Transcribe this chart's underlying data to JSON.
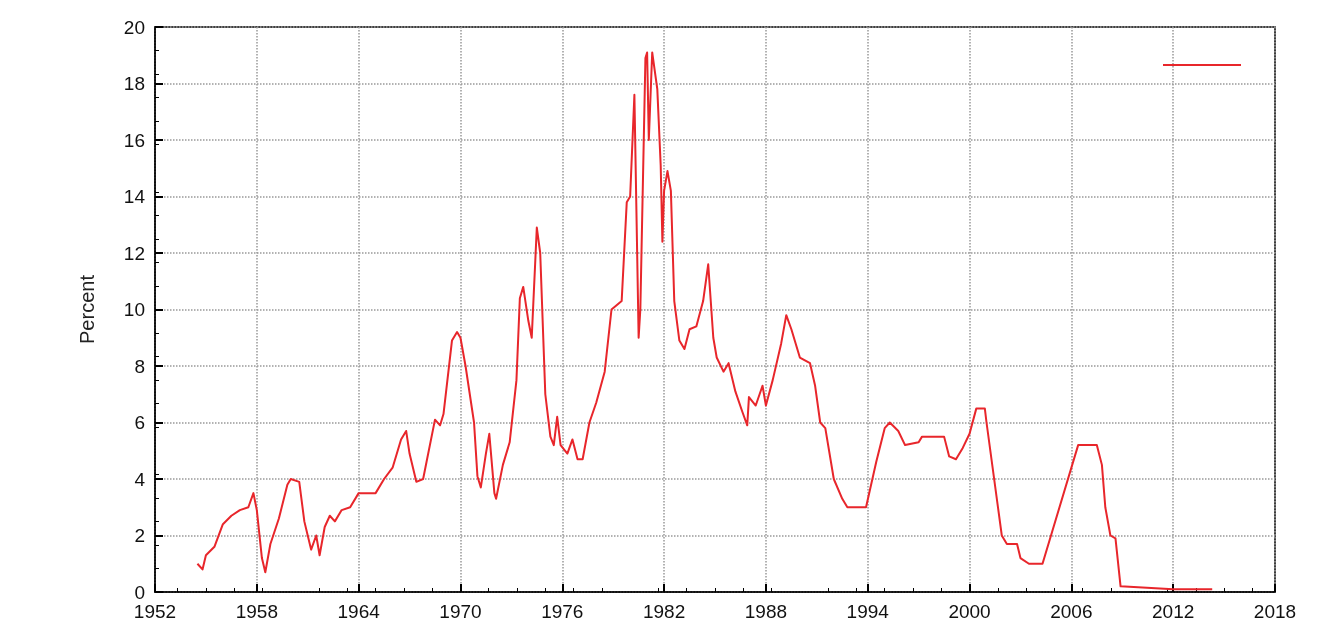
{
  "chart_data": {
    "type": "line",
    "ylabel": "Percent",
    "xlim": [
      1952,
      2018
    ],
    "xticks": [
      1952,
      1958,
      1964,
      1970,
      1976,
      1982,
      1988,
      1994,
      2000,
      2006,
      2012,
      2018
    ],
    "ylim": [
      0,
      20
    ],
    "yticks": [
      0,
      2,
      4,
      6,
      8,
      10,
      12,
      14,
      16,
      18,
      20
    ],
    "grid": true,
    "marker": "none",
    "line_style": "solid",
    "series": [
      {
        "color": "#e8262b",
        "x": [
          1954.5,
          1954.8,
          1955,
          1955.5,
          1956,
          1956.5,
          1957,
          1957.5,
          1957.8,
          1958,
          1958.3,
          1958.5,
          1958.8,
          1959.3,
          1959.8,
          1960,
          1960.5,
          1960.8,
          1961,
          1961.2,
          1961.5,
          1961.7,
          1962,
          1962.3,
          1962.6,
          1963,
          1963.5,
          1964,
          1965,
          1965.5,
          1966,
          1966.5,
          1966.8,
          1967,
          1967.4,
          1967.8,
          1968,
          1968.5,
          1968.8,
          1969,
          1969.5,
          1969.8,
          1970,
          1970.3,
          1970.8,
          1971,
          1971.2,
          1971.5,
          1971.7,
          1972,
          1972.1,
          1972.5,
          1972.9,
          1973.3,
          1973.5,
          1973.7,
          1974,
          1974.2,
          1974.5,
          1974.7,
          1975,
          1975.3,
          1975.5,
          1975.7,
          1975.9,
          1976.3,
          1976.6,
          1976.9,
          1977.2,
          1977.6,
          1978,
          1978.5,
          1978.9,
          1979.5,
          1979.8,
          1980,
          1980.25,
          1980.5,
          1980.6,
          1980.9,
          1981,
          1981.1,
          1981.3,
          1981.6,
          1981.8,
          1981.9,
          1982,
          1982.2,
          1982.4,
          1982.6,
          1982.9,
          1983.2,
          1983.5,
          1983.9,
          1984.3,
          1984.6,
          1984.9,
          1985.1,
          1985.5,
          1985.8,
          1986.2,
          1986.6,
          1986.9,
          1987,
          1987.4,
          1987.8,
          1988,
          1988.4,
          1988.9,
          1989.2,
          1989.5,
          1990,
          1990.6,
          1990.9,
          1991.2,
          1991.5,
          1992,
          1992.5,
          1992.8,
          1993.5,
          1993.9,
          1994.5,
          1995,
          1995.3,
          1995.8,
          1996.2,
          1997,
          1997.2,
          1998.5,
          1998.8,
          1999.2,
          1999.6,
          2000,
          2000.4,
          2000.9,
          2001,
          2001.9,
          2002.2,
          2002.8,
          2003,
          2003.5,
          2004.3,
          2006.4,
          2007.5,
          2007.8,
          2008,
          2008.3,
          2008.6,
          2008.9,
          2012,
          2014.3
        ],
        "values": [
          1.0,
          0.8,
          1.3,
          1.6,
          2.4,
          2.7,
          2.9,
          3.0,
          3.5,
          2.9,
          1.2,
          0.7,
          1.7,
          2.6,
          3.8,
          4.0,
          3.9,
          2.5,
          2.0,
          1.5,
          2.0,
          1.3,
          2.3,
          2.7,
          2.5,
          2.9,
          3.0,
          3.5,
          3.5,
          4.0,
          4.4,
          5.4,
          5.7,
          4.9,
          3.9,
          4.0,
          4.6,
          6.1,
          5.9,
          6.3,
          8.9,
          9.2,
          9.0,
          8.0,
          6.0,
          4.1,
          3.7,
          4.9,
          5.6,
          3.5,
          3.3,
          4.5,
          5.3,
          7.5,
          10.4,
          10.8,
          9.6,
          9.0,
          12.9,
          12.0,
          7.0,
          5.5,
          5.2,
          6.2,
          5.2,
          4.9,
          5.4,
          4.7,
          4.7,
          6.0,
          6.7,
          7.8,
          10.0,
          10.3,
          13.8,
          14.0,
          17.6,
          9.0,
          10.0,
          18.9,
          19.1,
          16.0,
          19.1,
          17.8,
          15.1,
          12.4,
          14.2,
          14.9,
          14.2,
          10.3,
          8.9,
          8.6,
          9.3,
          9.4,
          10.3,
          11.6,
          9.0,
          8.3,
          7.8,
          8.1,
          7.1,
          6.4,
          5.9,
          6.9,
          6.6,
          7.3,
          6.6,
          7.5,
          8.8,
          9.8,
          9.3,
          8.3,
          8.1,
          7.3,
          6.0,
          5.8,
          4.0,
          3.3,
          3.0,
          3.0,
          3.0,
          4.6,
          5.8,
          6.0,
          5.7,
          5.2,
          5.3,
          5.5,
          5.5,
          4.8,
          4.7,
          5.1,
          5.6,
          6.5,
          6.5,
          6.0,
          2.0,
          1.7,
          1.7,
          1.2,
          1.0,
          1.0,
          5.2,
          5.2,
          4.5,
          3.0,
          2.0,
          1.9,
          0.2,
          0.1,
          0.1
        ]
      }
    ]
  }
}
